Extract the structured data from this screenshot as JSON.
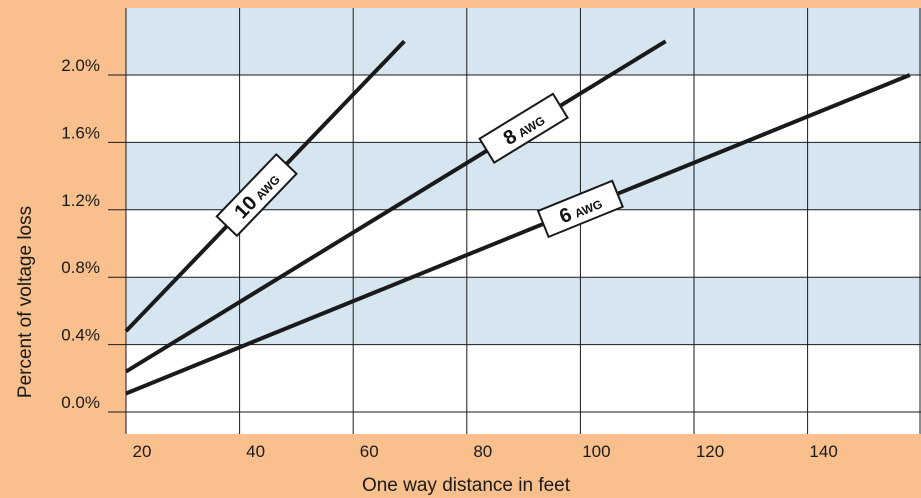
{
  "colors": {
    "margin": "#f9c08d",
    "band": "#d6e6f0",
    "plot_bg": "#ffffff",
    "grid": "#1a1a1a",
    "line": "#1a1a1a"
  },
  "chart_data": {
    "type": "line",
    "title": "",
    "xlabel": "One way distance in feet",
    "ylabel": "Percent of voltage loss",
    "xlim": [
      20,
      158
    ],
    "ylim": [
      0.0,
      2.4
    ],
    "x_ticks": [
      20,
      40,
      60,
      80,
      100,
      120,
      140
    ],
    "x_tick_labels": [
      "20",
      "40",
      "60",
      "80",
      "100",
      "120",
      "140"
    ],
    "y_ticks": [
      0.0,
      0.4,
      0.8,
      1.2,
      1.6,
      2.0
    ],
    "y_tick_labels": [
      "0.0%",
      "0.4%",
      "0.8%",
      "1.2%",
      "1.6%",
      "2.0%"
    ],
    "grid": true,
    "alternating_bands": true,
    "series": [
      {
        "name": "10",
        "unit": "AWG",
        "x": [
          20,
          69
        ],
        "y": [
          0.48,
          2.2
        ]
      },
      {
        "name": "8",
        "unit": "AWG",
        "x": [
          20,
          115
        ],
        "y": [
          0.24,
          2.2
        ]
      },
      {
        "name": "6",
        "unit": "AWG",
        "x": [
          20,
          158
        ],
        "y": [
          0.11,
          2.0
        ]
      }
    ]
  }
}
